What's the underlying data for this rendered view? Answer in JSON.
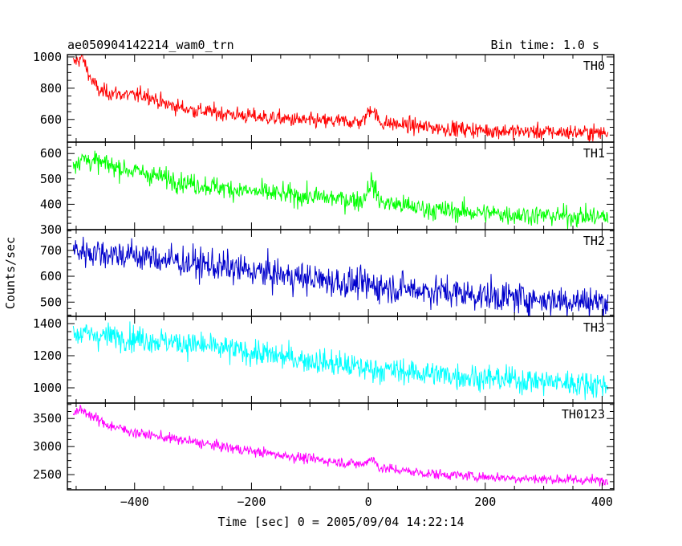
{
  "chart_data": {
    "type": "line",
    "title": "ae050904142214_wam0_trn",
    "bin_time": "Bin time: 1.0 s",
    "xlabel": "Time [sec] 0 = 2005/09/04 14:22:14",
    "ylabel": "Counts/sec",
    "xlim": [
      -515,
      420
    ],
    "xticks": [
      -400,
      -200,
      0,
      200,
      400
    ],
    "xtick_labels": [
      "−400",
      "−200",
      "0",
      "200",
      "400"
    ],
    "panels": [
      {
        "name": "TH0",
        "color": "#ff0000",
        "ylim": [
          455,
          1015
        ],
        "yticks": [
          600,
          800,
          1000
        ],
        "ytick_labels": [
          "600",
          "800",
          "1000"
        ],
        "trend": [
          [
            -505,
            960
          ],
          [
            -490,
            1000
          ],
          [
            -475,
            860
          ],
          [
            -460,
            780
          ],
          [
            -400,
            750
          ],
          [
            -380,
            760
          ],
          [
            -350,
            700
          ],
          [
            -300,
            660
          ],
          [
            -200,
            620
          ],
          [
            -100,
            590
          ],
          [
            -10,
            585
          ],
          [
            5,
            680
          ],
          [
            20,
            580
          ],
          [
            100,
            550
          ],
          [
            200,
            530
          ],
          [
            300,
            520
          ],
          [
            410,
            515
          ]
        ],
        "noise": 25
      },
      {
        "name": "TH1",
        "color": "#00ff00",
        "ylim": [
          300,
          645
        ],
        "yticks": [
          300,
          400,
          500,
          600
        ],
        "ytick_labels": [
          "300",
          "400",
          "500",
          "600"
        ],
        "trend": [
          [
            -505,
            560
          ],
          [
            -490,
            580
          ],
          [
            -400,
            530
          ],
          [
            -300,
            480
          ],
          [
            -200,
            450
          ],
          [
            -100,
            430
          ],
          [
            -10,
            415
          ],
          [
            5,
            490
          ],
          [
            20,
            410
          ],
          [
            100,
            380
          ],
          [
            200,
            365
          ],
          [
            300,
            355
          ],
          [
            410,
            350
          ]
        ],
        "noise": 20
      },
      {
        "name": "TH2",
        "color": "#0000cc",
        "ylim": [
          445,
          780
        ],
        "yticks": [
          500,
          600,
          700
        ],
        "ytick_labels": [
          "500",
          "600",
          "700"
        ],
        "trend": [
          [
            -505,
            700
          ],
          [
            -400,
            680
          ],
          [
            -300,
            650
          ],
          [
            -200,
            620
          ],
          [
            -100,
            590
          ],
          [
            0,
            565
          ],
          [
            100,
            545
          ],
          [
            200,
            525
          ],
          [
            300,
            510
          ],
          [
            410,
            500
          ]
        ],
        "noise": 30
      },
      {
        "name": "TH3",
        "color": "#00ffff",
        "ylim": [
          905,
          1445
        ],
        "yticks": [
          1000,
          1200,
          1400
        ],
        "ytick_labels": [
          "1000",
          "1200",
          "1400"
        ],
        "trend": [
          [
            -505,
            1340
          ],
          [
            -400,
            1310
          ],
          [
            -300,
            1270
          ],
          [
            -200,
            1220
          ],
          [
            -100,
            1170
          ],
          [
            0,
            1120
          ],
          [
            100,
            1090
          ],
          [
            200,
            1060
          ],
          [
            300,
            1040
          ],
          [
            410,
            1020
          ]
        ],
        "noise": 40
      },
      {
        "name": "TH0123",
        "color": "#ff00ff",
        "ylim": [
          2230,
          3775
        ],
        "yticks": [
          2500,
          3000,
          3500
        ],
        "ytick_labels": [
          "2500",
          "3000",
          "3500"
        ],
        "trend": [
          [
            -505,
            3600
          ],
          [
            -490,
            3650
          ],
          [
            -450,
            3400
          ],
          [
            -400,
            3250
          ],
          [
            -300,
            3080
          ],
          [
            -200,
            2920
          ],
          [
            -100,
            2780
          ],
          [
            -10,
            2680
          ],
          [
            5,
            2800
          ],
          [
            20,
            2620
          ],
          [
            100,
            2520
          ],
          [
            200,
            2460
          ],
          [
            300,
            2420
          ],
          [
            410,
            2390
          ]
        ],
        "noise": 45
      }
    ]
  }
}
